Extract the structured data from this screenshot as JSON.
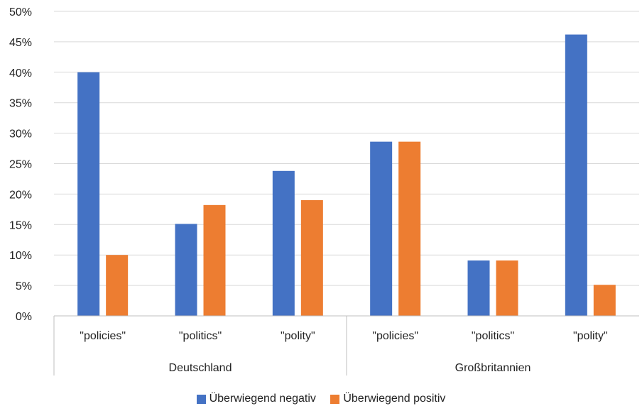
{
  "chart_data": {
    "type": "bar",
    "y_ticks": [
      "0%",
      "5%",
      "10%",
      "15%",
      "20%",
      "25%",
      "30%",
      "35%",
      "40%",
      "45%",
      "50%"
    ],
    "ylim": [
      0,
      50
    ],
    "grid": true,
    "legend_position": "bottom",
    "groups": [
      {
        "label": "Deutschland",
        "categories": [
          "\"policies\"",
          "\"politics\"",
          "\"polity\""
        ]
      },
      {
        "label": "Großbritannien",
        "categories": [
          "\"policies\"",
          "\"politics\"",
          "\"polity\""
        ]
      }
    ],
    "series": [
      {
        "name": "Überwiegend negativ",
        "color": "#4472C4",
        "values": [
          40,
          15.1,
          23.8,
          28.6,
          9.1,
          46.2
        ]
      },
      {
        "name": "Überwiegend positiv",
        "color": "#ED7D31",
        "values": [
          10,
          18.2,
          19.0,
          28.6,
          9.1,
          5.1
        ]
      }
    ]
  }
}
